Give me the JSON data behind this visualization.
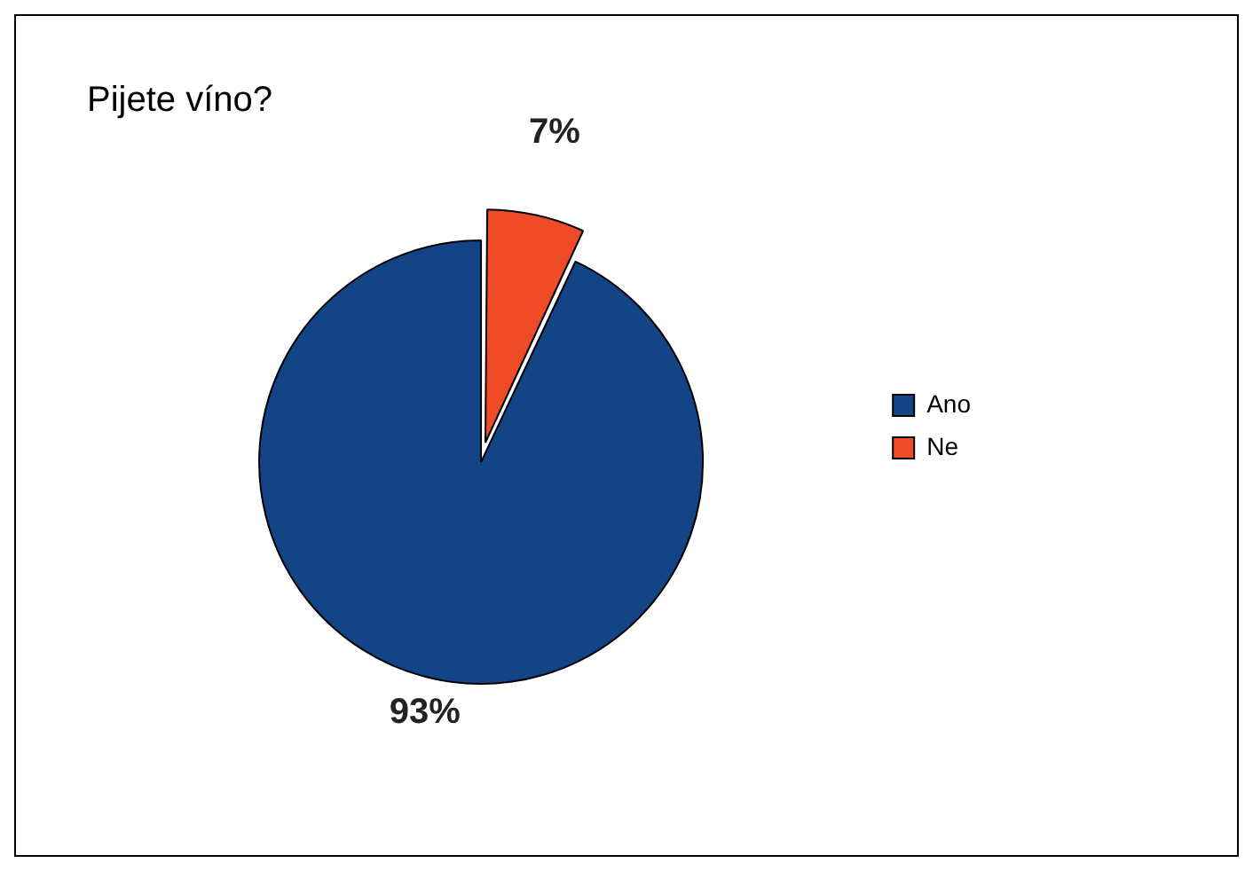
{
  "chart_data": {
    "type": "pie",
    "title": "Pijete víno?",
    "categories": [
      "Ano",
      "Ne"
    ],
    "values": [
      93,
      7
    ],
    "colors": [
      "#134586",
      "#ef4b27"
    ],
    "value_labels": [
      "93%",
      "7%"
    ],
    "legend": "right"
  }
}
